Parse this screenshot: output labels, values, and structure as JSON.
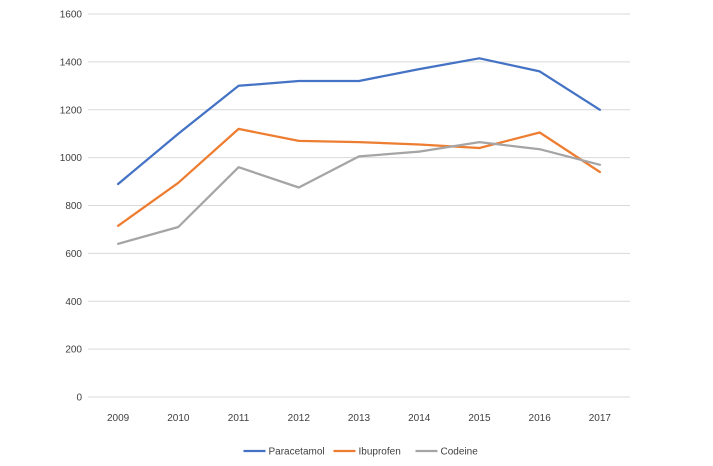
{
  "chart_data": {
    "type": "line",
    "title": "",
    "xlabel": "",
    "ylabel": "",
    "categories": [
      "2009",
      "2010",
      "2011",
      "2012",
      "2013",
      "2014",
      "2015",
      "2016",
      "2017"
    ],
    "ylim": [
      0,
      1600
    ],
    "yticks": [
      "0",
      "200",
      "400",
      "600",
      "800",
      "1000",
      "1200",
      "1400",
      "1600"
    ],
    "grid": true,
    "legend_position": "bottom",
    "series": [
      {
        "name": "Paracetamol",
        "color": "#4472C4",
        "values": [
          890,
          1100,
          1300,
          1320,
          1320,
          1370,
          1415,
          1360,
          1200
        ]
      },
      {
        "name": "Ibuprofen",
        "color": "#ED7D31",
        "values": [
          715,
          895,
          1120,
          1070,
          1065,
          1055,
          1040,
          1105,
          940
        ]
      },
      {
        "name": "Codeine",
        "color": "#A5A5A5",
        "values": [
          640,
          710,
          960,
          875,
          1005,
          1025,
          1065,
          1035,
          970
        ]
      }
    ]
  }
}
